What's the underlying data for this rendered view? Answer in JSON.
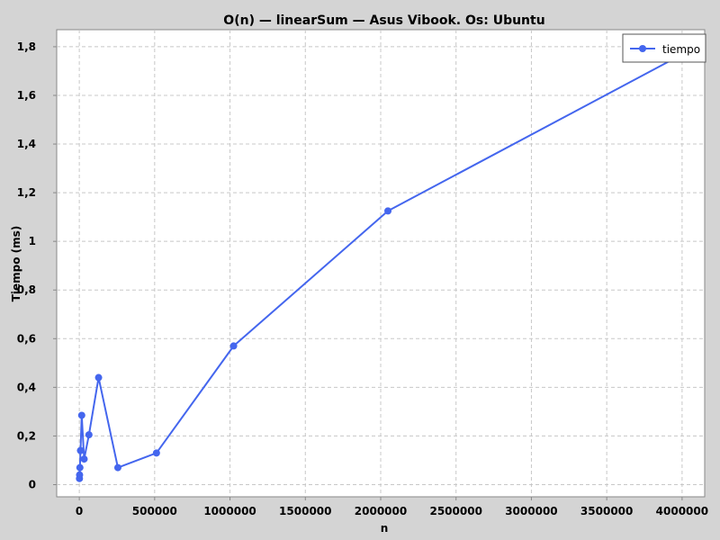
{
  "chart_data": {
    "type": "line",
    "title": "O(n) — linearSum — Asus Vibook. Os: Ubuntu",
    "xlabel": "n",
    "ylabel": "Tiempo (ms)",
    "xlim": [
      -150000,
      4150000
    ],
    "ylim": [
      -0.05,
      1.87
    ],
    "x_ticks": [
      0,
      500000,
      1000000,
      1500000,
      2000000,
      2500000,
      3000000,
      3500000,
      4000000
    ],
    "x_tick_labels": [
      "0",
      "500000",
      "1000000",
      "1500000",
      "2000000",
      "2500000",
      "3000000",
      "3500000",
      "4000000"
    ],
    "y_ticks": [
      0,
      0.2,
      0.4,
      0.6,
      0.8,
      1.0,
      1.2,
      1.4,
      1.6,
      1.8
    ],
    "y_tick_labels": [
      "0",
      "0,2",
      "0,4",
      "0,6",
      "0,8",
      "1",
      "1,2",
      "1,4",
      "1,6",
      "1,8"
    ],
    "grid": true,
    "legend_position": "top-right",
    "series": [
      {
        "name": "tiempo",
        "color": "#4466ee",
        "x": [
          1000,
          2000,
          4000,
          8000,
          16000,
          32000,
          64000,
          128000,
          256000,
          512000,
          1024000,
          2048000,
          4096000
        ],
        "y": [
          0.025,
          0.04,
          0.07,
          0.14,
          0.285,
          0.105,
          0.205,
          0.44,
          0.07,
          0.13,
          0.57,
          1.125,
          1.8
        ]
      }
    ]
  }
}
